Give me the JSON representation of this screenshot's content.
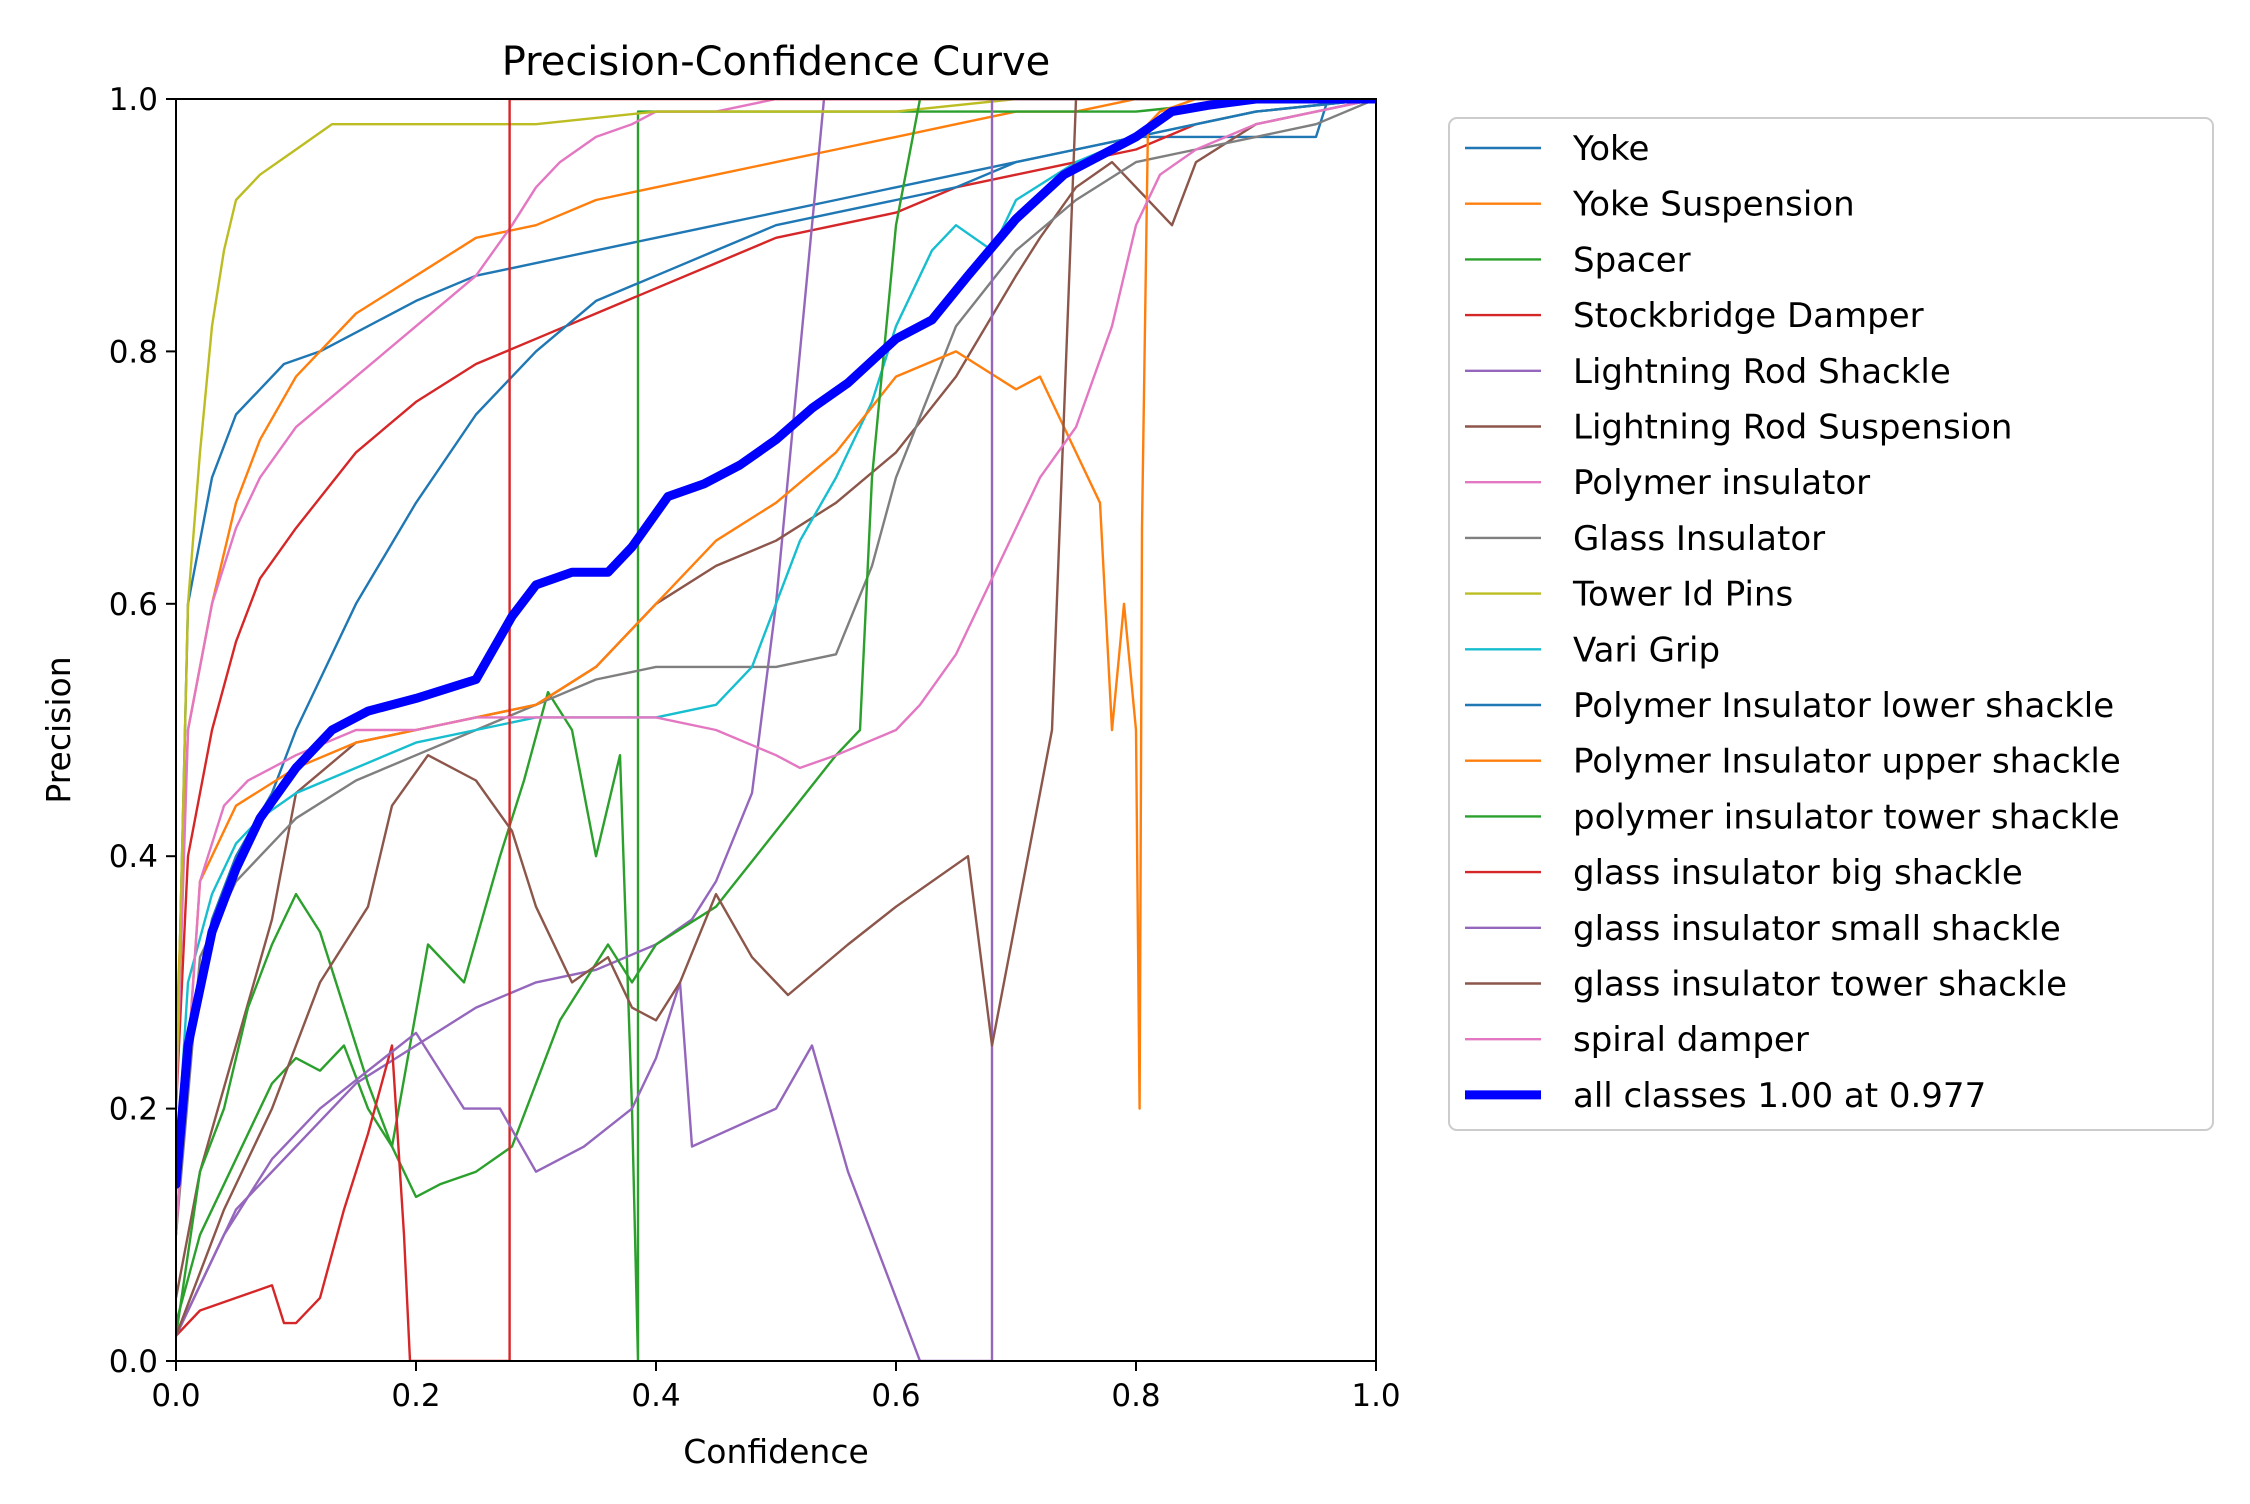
{
  "chart_data": {
    "type": "line",
    "title": "Precision-Confidence Curve",
    "xlabel": "Confidence",
    "ylabel": "Precision",
    "xlim": [
      0,
      1
    ],
    "ylim": [
      0,
      1
    ],
    "xticks": [
      "0.0",
      "0.2",
      "0.4",
      "0.6",
      "0.8",
      "1.0"
    ],
    "yticks": [
      "0.0",
      "0.2",
      "0.4",
      "0.6",
      "0.8",
      "1.0"
    ],
    "grid": false,
    "legend_position": "outside-right",
    "series": [
      {
        "name": "Yoke",
        "color": "#1f77b4",
        "x": [
          0,
          0.01,
          0.03,
          0.05,
          0.07,
          0.09,
          0.12,
          0.16,
          0.2,
          0.25,
          0.3,
          0.35,
          0.4,
          0.45,
          0.5,
          0.55,
          0.6,
          0.65,
          0.7,
          0.75,
          0.8,
          0.85,
          0.9,
          0.93,
          0.95,
          0.96,
          1.0
        ],
        "y": [
          0.2,
          0.6,
          0.7,
          0.75,
          0.77,
          0.79,
          0.8,
          0.82,
          0.84,
          0.86,
          0.87,
          0.88,
          0.89,
          0.9,
          0.91,
          0.92,
          0.93,
          0.94,
          0.95,
          0.96,
          0.97,
          0.97,
          0.97,
          0.97,
          0.97,
          1.0,
          1.0
        ]
      },
      {
        "name": "Yoke Suspension",
        "color": "#ff7f0e",
        "x": [
          0,
          0.01,
          0.03,
          0.05,
          0.07,
          0.1,
          0.15,
          0.2,
          0.25,
          0.3,
          0.35,
          0.4,
          0.45,
          0.5,
          0.55,
          0.6,
          0.65,
          0.7,
          0.75,
          0.8,
          0.85,
          0.9,
          1.0
        ],
        "y": [
          0.25,
          0.5,
          0.6,
          0.68,
          0.73,
          0.78,
          0.83,
          0.86,
          0.89,
          0.9,
          0.92,
          0.93,
          0.94,
          0.95,
          0.96,
          0.97,
          0.98,
          0.99,
          0.99,
          1.0,
          1.0,
          1.0,
          1.0
        ]
      },
      {
        "name": "Spacer",
        "color": "#2ca02c",
        "x": [
          0,
          0.02,
          0.04,
          0.06,
          0.08,
          0.1,
          0.12,
          0.14,
          0.16,
          0.18,
          0.21,
          0.24,
          0.27,
          0.29,
          0.31,
          0.33,
          0.35,
          0.37,
          0.38,
          0.385,
          0.385,
          0.39,
          0.4,
          0.5,
          0.6,
          0.7,
          0.8,
          0.9,
          1.0
        ],
        "y": [
          0.03,
          0.1,
          0.14,
          0.18,
          0.22,
          0.24,
          0.23,
          0.25,
          0.2,
          0.17,
          0.33,
          0.3,
          0.4,
          0.46,
          0.53,
          0.5,
          0.4,
          0.48,
          0.2,
          0.0,
          0.99,
          0.99,
          0.99,
          0.99,
          0.99,
          0.99,
          0.99,
          1.0,
          1.0
        ]
      },
      {
        "name": "Stockbridge Damper",
        "color": "#d62728",
        "x": [
          0,
          0.01,
          0.03,
          0.05,
          0.07,
          0.1,
          0.15,
          0.2,
          0.25,
          0.3,
          0.35,
          0.4,
          0.45,
          0.5,
          0.55,
          0.6,
          0.65,
          0.7,
          0.75,
          0.8,
          0.85,
          0.9,
          1.0
        ],
        "y": [
          0.2,
          0.4,
          0.5,
          0.57,
          0.62,
          0.66,
          0.72,
          0.76,
          0.79,
          0.81,
          0.83,
          0.85,
          0.87,
          0.89,
          0.9,
          0.91,
          0.93,
          0.94,
          0.95,
          0.96,
          0.98,
          0.99,
          1.0
        ]
      },
      {
        "name": "Lightning Rod Shackle",
        "color": "#9467bd",
        "x": [
          0,
          0.05,
          0.1,
          0.15,
          0.2,
          0.25,
          0.3,
          0.35,
          0.4,
          0.43,
          0.45,
          0.48,
          0.5,
          0.53,
          0.54,
          0.6,
          0.7,
          0.8,
          0.9,
          1.0
        ],
        "y": [
          0.02,
          0.12,
          0.17,
          0.22,
          0.25,
          0.28,
          0.3,
          0.31,
          0.33,
          0.35,
          0.38,
          0.45,
          0.6,
          0.9,
          1.0,
          1.0,
          1.0,
          1.0,
          1.0,
          1.0
        ]
      },
      {
        "name": "Lightning Rod Suspension",
        "color": "#8c564b",
        "x": [
          0,
          0.02,
          0.05,
          0.08,
          0.1,
          0.15,
          0.2,
          0.25,
          0.3,
          0.35,
          0.4,
          0.45,
          0.5,
          0.55,
          0.6,
          0.65,
          0.7,
          0.72,
          0.75,
          0.78,
          0.8,
          0.83,
          0.85,
          0.9,
          1.0
        ],
        "y": [
          0.05,
          0.15,
          0.25,
          0.35,
          0.45,
          0.49,
          0.5,
          0.51,
          0.52,
          0.55,
          0.6,
          0.63,
          0.65,
          0.68,
          0.72,
          0.78,
          0.86,
          0.89,
          0.93,
          0.95,
          0.93,
          0.9,
          0.95,
          0.98,
          1.0
        ]
      },
      {
        "name": "Polymer insulator",
        "color": "#e377c2",
        "x": [
          0,
          0.01,
          0.03,
          0.05,
          0.07,
          0.1,
          0.15,
          0.2,
          0.25,
          0.28,
          0.3,
          0.32,
          0.35,
          0.38,
          0.4,
          0.45,
          0.5,
          0.55,
          0.6,
          0.7,
          0.8,
          0.9,
          1.0
        ],
        "y": [
          0.2,
          0.5,
          0.6,
          0.66,
          0.7,
          0.74,
          0.78,
          0.82,
          0.86,
          0.9,
          0.93,
          0.95,
          0.97,
          0.98,
          0.99,
          0.99,
          1.0,
          1.0,
          1.0,
          1.0,
          1.0,
          1.0,
          1.0
        ]
      },
      {
        "name": "Glass Insulator",
        "color": "#7f7f7f",
        "x": [
          0,
          0.02,
          0.05,
          0.08,
          0.1,
          0.15,
          0.2,
          0.25,
          0.3,
          0.35,
          0.4,
          0.45,
          0.5,
          0.55,
          0.58,
          0.6,
          0.65,
          0.7,
          0.75,
          0.8,
          0.85,
          0.9,
          0.95,
          1.0
        ],
        "y": [
          0.1,
          0.32,
          0.38,
          0.41,
          0.43,
          0.46,
          0.48,
          0.5,
          0.52,
          0.54,
          0.55,
          0.55,
          0.55,
          0.56,
          0.63,
          0.7,
          0.82,
          0.88,
          0.92,
          0.95,
          0.96,
          0.97,
          0.98,
          1.0
        ]
      },
      {
        "name": "Tower Id Pins",
        "color": "#bcbd22",
        "x": [
          0,
          0.01,
          0.02,
          0.03,
          0.04,
          0.05,
          0.07,
          0.1,
          0.13,
          0.2,
          0.3,
          0.4,
          0.5,
          0.6,
          0.7,
          0.8,
          0.9,
          1.0
        ],
        "y": [
          0.2,
          0.6,
          0.72,
          0.82,
          0.88,
          0.92,
          0.94,
          0.96,
          0.98,
          0.98,
          0.98,
          0.99,
          0.99,
          0.99,
          1.0,
          1.0,
          1.0,
          1.0
        ]
      },
      {
        "name": "Vari Grip",
        "color": "#17becf",
        "x": [
          0,
          0.01,
          0.03,
          0.05,
          0.07,
          0.1,
          0.15,
          0.2,
          0.25,
          0.3,
          0.35,
          0.4,
          0.45,
          0.48,
          0.5,
          0.52,
          0.55,
          0.58,
          0.6,
          0.63,
          0.65,
          0.68,
          0.7,
          0.75,
          0.8,
          0.9,
          1.0
        ],
        "y": [
          0.15,
          0.3,
          0.37,
          0.41,
          0.43,
          0.45,
          0.47,
          0.49,
          0.5,
          0.51,
          0.51,
          0.51,
          0.52,
          0.55,
          0.6,
          0.65,
          0.7,
          0.76,
          0.82,
          0.88,
          0.9,
          0.88,
          0.92,
          0.95,
          0.97,
          0.99,
          1.0
        ]
      },
      {
        "name": "Polymer Insulator lower shackle",
        "color": "#1f77b4",
        "x": [
          0,
          0.01,
          0.03,
          0.05,
          0.08,
          0.1,
          0.15,
          0.2,
          0.25,
          0.3,
          0.35,
          0.4,
          0.45,
          0.5,
          0.55,
          0.6,
          0.65,
          0.7,
          0.75,
          0.8,
          0.85,
          0.9,
          1.0
        ],
        "y": [
          0.1,
          0.25,
          0.35,
          0.4,
          0.45,
          0.5,
          0.6,
          0.68,
          0.75,
          0.8,
          0.84,
          0.86,
          0.88,
          0.9,
          0.91,
          0.92,
          0.93,
          0.95,
          0.96,
          0.97,
          0.98,
          0.99,
          1.0
        ]
      },
      {
        "name": "Polymer Insulator upper shackle",
        "color": "#ff7f0e",
        "x": [
          0,
          0.02,
          0.05,
          0.1,
          0.15,
          0.2,
          0.25,
          0.3,
          0.35,
          0.4,
          0.45,
          0.5,
          0.55,
          0.6,
          0.65,
          0.7,
          0.72,
          0.75,
          0.77,
          0.78,
          0.79,
          0.8,
          0.803,
          0.805,
          0.81,
          0.82,
          0.85,
          0.9,
          1.0
        ],
        "y": [
          0.1,
          0.38,
          0.44,
          0.47,
          0.49,
          0.5,
          0.51,
          0.52,
          0.55,
          0.6,
          0.65,
          0.68,
          0.72,
          0.78,
          0.8,
          0.77,
          0.78,
          0.72,
          0.68,
          0.5,
          0.6,
          0.5,
          0.2,
          0.66,
          0.98,
          0.99,
          1.0,
          1.0,
          1.0
        ]
      },
      {
        "name": "polymer insulator tower shackle",
        "color": "#2ca02c",
        "x": [
          0,
          0.02,
          0.04,
          0.06,
          0.08,
          0.1,
          0.12,
          0.14,
          0.16,
          0.18,
          0.2,
          0.22,
          0.25,
          0.28,
          0.3,
          0.32,
          0.34,
          0.36,
          0.38,
          0.4,
          0.45,
          0.5,
          0.55,
          0.57,
          0.58,
          0.6,
          0.62,
          0.65,
          0.7,
          0.8,
          1.0
        ],
        "y": [
          0.02,
          0.15,
          0.2,
          0.28,
          0.33,
          0.37,
          0.34,
          0.28,
          0.22,
          0.17,
          0.13,
          0.14,
          0.15,
          0.17,
          0.22,
          0.27,
          0.3,
          0.33,
          0.3,
          0.33,
          0.36,
          0.42,
          0.48,
          0.5,
          0.7,
          0.9,
          1.0,
          1.0,
          1.0,
          1.0,
          1.0
        ]
      },
      {
        "name": "glass insulator big shackle",
        "color": "#d62728",
        "x": [
          0,
          0.02,
          0.05,
          0.08,
          0.09,
          0.1,
          0.12,
          0.14,
          0.16,
          0.18,
          0.19,
          0.195,
          0.2,
          0.25,
          0.278,
          0.278,
          0.3,
          0.4,
          0.5,
          0.6,
          0.7,
          0.8,
          0.9,
          1.0
        ],
        "y": [
          0.02,
          0.04,
          0.05,
          0.06,
          0.03,
          0.03,
          0.05,
          0.12,
          0.18,
          0.25,
          0.1,
          0.0,
          0.0,
          0.0,
          0.0,
          1.0,
          1.0,
          1.0,
          1.0,
          1.0,
          1.0,
          1.0,
          1.0,
          1.0
        ]
      },
      {
        "name": "glass insulator small shackle",
        "color": "#9467bd",
        "x": [
          0,
          0.04,
          0.08,
          0.12,
          0.16,
          0.2,
          0.24,
          0.27,
          0.3,
          0.34,
          0.38,
          0.4,
          0.42,
          0.43,
          0.5,
          0.53,
          0.56,
          0.6,
          0.62,
          0.65,
          0.68,
          0.68,
          0.7,
          0.8,
          0.9,
          1.0
        ],
        "y": [
          0.02,
          0.1,
          0.16,
          0.2,
          0.23,
          0.26,
          0.2,
          0.2,
          0.15,
          0.17,
          0.2,
          0.24,
          0.3,
          0.17,
          0.2,
          0.25,
          0.15,
          0.05,
          0.0,
          0.0,
          0.0,
          1.0,
          1.0,
          1.0,
          1.0,
          1.0
        ]
      },
      {
        "name": "glass insulator tower shackle",
        "color": "#8c564b",
        "x": [
          0,
          0.04,
          0.08,
          0.12,
          0.16,
          0.18,
          0.21,
          0.25,
          0.28,
          0.3,
          0.33,
          0.36,
          0.38,
          0.4,
          0.42,
          0.45,
          0.48,
          0.51,
          0.56,
          0.6,
          0.66,
          0.68,
          0.7,
          0.73,
          0.75,
          0.8,
          0.9,
          1.0
        ],
        "y": [
          0.02,
          0.12,
          0.2,
          0.3,
          0.36,
          0.44,
          0.48,
          0.46,
          0.42,
          0.36,
          0.3,
          0.32,
          0.28,
          0.27,
          0.3,
          0.37,
          0.32,
          0.29,
          0.33,
          0.36,
          0.4,
          0.25,
          0.35,
          0.5,
          1.0,
          1.0,
          1.0,
          1.0
        ]
      },
      {
        "name": "spiral damper",
        "color": "#e377c2",
        "x": [
          0,
          0.02,
          0.04,
          0.06,
          0.08,
          0.1,
          0.15,
          0.2,
          0.25,
          0.3,
          0.35,
          0.4,
          0.45,
          0.5,
          0.52,
          0.55,
          0.6,
          0.62,
          0.65,
          0.68,
          0.7,
          0.72,
          0.75,
          0.78,
          0.8,
          0.82,
          0.85,
          0.9,
          1.0
        ],
        "y": [
          0.1,
          0.38,
          0.44,
          0.46,
          0.47,
          0.48,
          0.5,
          0.5,
          0.51,
          0.51,
          0.51,
          0.51,
          0.5,
          0.48,
          0.47,
          0.48,
          0.5,
          0.52,
          0.56,
          0.62,
          0.66,
          0.7,
          0.74,
          0.82,
          0.9,
          0.94,
          0.96,
          0.98,
          1.0
        ]
      },
      {
        "name": "all classes 1.00 at 0.977",
        "color": "#0000ff",
        "x": [
          0,
          0.01,
          0.03,
          0.05,
          0.07,
          0.1,
          0.13,
          0.16,
          0.2,
          0.25,
          0.28,
          0.3,
          0.33,
          0.36,
          0.38,
          0.41,
          0.44,
          0.47,
          0.5,
          0.53,
          0.56,
          0.6,
          0.63,
          0.66,
          0.7,
          0.74,
          0.77,
          0.8,
          0.83,
          0.86,
          0.9,
          0.95,
          1.0
        ],
        "y": [
          0.14,
          0.25,
          0.34,
          0.39,
          0.43,
          0.47,
          0.5,
          0.515,
          0.525,
          0.54,
          0.59,
          0.615,
          0.625,
          0.625,
          0.645,
          0.685,
          0.695,
          0.71,
          0.73,
          0.755,
          0.775,
          0.81,
          0.825,
          0.86,
          0.905,
          0.94,
          0.955,
          0.97,
          0.99,
          0.995,
          1.0,
          1.0,
          1.0
        ]
      }
    ]
  }
}
